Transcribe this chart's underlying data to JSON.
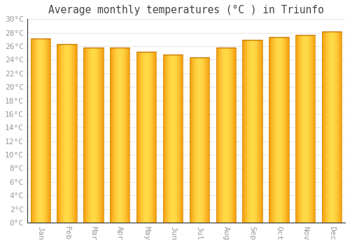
{
  "title": "Average monthly temperatures (°C ) in Triunfo",
  "months": [
    "Jan",
    "Feb",
    "Mar",
    "Apr",
    "May",
    "Jun",
    "Jul",
    "Aug",
    "Sep",
    "Oct",
    "Nov",
    "Dec"
  ],
  "temperatures": [
    27.1,
    26.3,
    25.8,
    25.8,
    25.2,
    24.8,
    24.4,
    25.8,
    26.9,
    27.3,
    27.7,
    28.2
  ],
  "bar_color_center": "#FFD04A",
  "bar_color_edge": "#F5980A",
  "bar_top_border": "#CC7700",
  "background_color": "#FFFFFF",
  "grid_color": "#E8E8E8",
  "tick_label_color": "#999999",
  "title_color": "#444444",
  "ylim": [
    0,
    30
  ],
  "ytick_step": 2,
  "title_fontsize": 10.5,
  "tick_fontsize": 8,
  "bar_width": 0.75
}
